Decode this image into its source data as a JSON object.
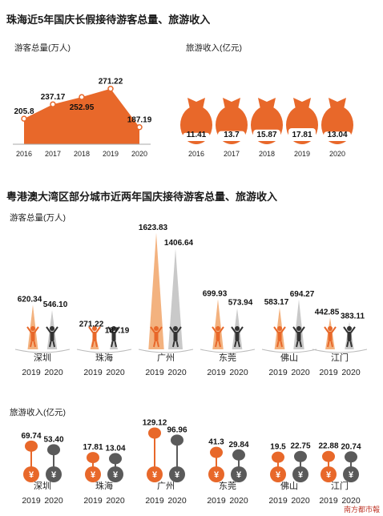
{
  "section1": {
    "title": "珠海近5年国庆长假接待游客总量、旅游收入",
    "visitors_label": "游客总量(万人)",
    "revenue_label": "旅游收入(亿元)"
  },
  "section2": {
    "title": "粤港澳大湾区部分城市近两年国庆接待游客总量、旅游收入",
    "visitors_label": "游客总量(万人)",
    "revenue_label": "旅游收入(亿元)"
  },
  "watermark": "南方都市報",
  "colors": {
    "orange": "#e8682a",
    "dark": "#5a5a5a",
    "light_orange": "#f3b27f",
    "light_gray": "#c9c9c9"
  },
  "chart_data": [
    {
      "type": "area",
      "x": [
        "2016",
        "2017",
        "2018",
        "2019",
        "2020"
      ],
      "values": [
        205.8,
        237.17,
        252.95,
        271.22,
        187.19
      ],
      "labels": [
        "205.8",
        "237.17",
        "252.95",
        "271.22",
        "187.19"
      ]
    },
    {
      "type": "bar",
      "categories": [
        "2016",
        "2017",
        "2018",
        "2019",
        "2020"
      ],
      "values": [
        11.41,
        13.7,
        15.87,
        17.81,
        13.04
      ],
      "labels": [
        "11.41",
        "13.7",
        "15.87",
        "17.81",
        "13.04"
      ]
    },
    {
      "type": "bar",
      "categories": [
        "深圳",
        "珠海",
        "广州",
        "东莞",
        "佛山",
        "江门"
      ],
      "years": [
        "2019",
        "2020"
      ],
      "series": [
        {
          "values": [
            620.34,
            271.22,
            1623.83,
            699.93,
            583.17,
            442.85
          ],
          "labels": [
            "620.34",
            "271.22",
            "1623.83",
            "699.93",
            "583.17",
            "442.85"
          ]
        },
        {
          "values": [
            546.1,
            187.19,
            1406.64,
            573.94,
            694.27,
            383.11
          ],
          "labels": [
            "546.10",
            "187.19",
            "1406.64",
            "573.94",
            "694.27",
            "383.11"
          ]
        }
      ]
    },
    {
      "type": "bar",
      "categories": [
        "深圳",
        "珠海",
        "广州",
        "东莞",
        "佛山",
        "江门"
      ],
      "years": [
        "2019",
        "2020"
      ],
      "series": [
        {
          "values": [
            69.74,
            17.81,
            129.12,
            41.3,
            19.5,
            22.88
          ],
          "labels": [
            "69.74",
            "17.81",
            "129.12",
            "41.3",
            "19.5",
            "22.88"
          ]
        },
        {
          "values": [
            53.4,
            13.04,
            96.96,
            29.84,
            22.75,
            20.74
          ],
          "labels": [
            "53.40",
            "13.04",
            "96.96",
            "29.84",
            "22.75",
            "20.74"
          ]
        }
      ]
    }
  ]
}
